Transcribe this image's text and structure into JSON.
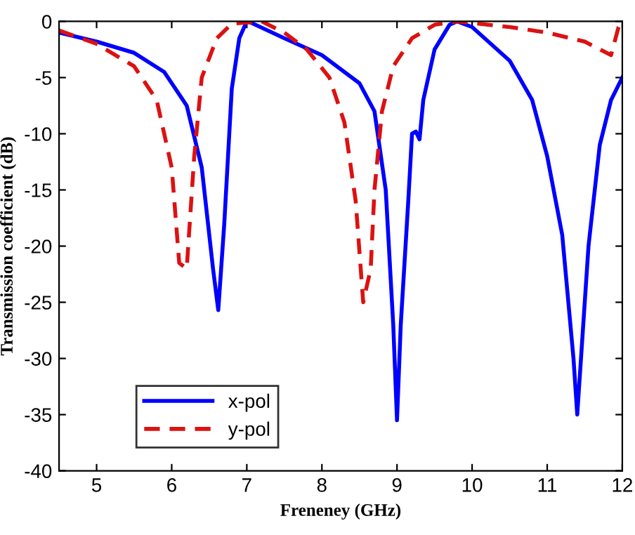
{
  "chart_data": {
    "type": "line",
    "xlabel": "Freneney (GHz)",
    "ylabel": "Transmission coefficient (dB)",
    "xlim": [
      4.5,
      12
    ],
    "ylim": [
      -40,
      0
    ],
    "xticks": [
      5,
      6,
      7,
      8,
      9,
      10,
      11,
      12
    ],
    "yticks": [
      -40,
      -35,
      -30,
      -25,
      -20,
      -15,
      -10,
      -5,
      0
    ],
    "grid": false,
    "legend": "bottom left",
    "series": [
      {
        "name": "x-pol",
        "color": "#0000ff",
        "line_style": "solid",
        "x": [
          4.5,
          5,
          5.5,
          5.9,
          6.2,
          6.4,
          6.55,
          6.62,
          6.7,
          6.8,
          6.9,
          7.0,
          7.05,
          7.5,
          8,
          8.5,
          8.7,
          8.85,
          8.95,
          9.0,
          9.05,
          9.15,
          9.2,
          9.25,
          9.3,
          9.35,
          9.5,
          9.7,
          9.8,
          10,
          10.5,
          10.8,
          11,
          11.2,
          11.35,
          11.4,
          11.45,
          11.55,
          11.7,
          11.85,
          12
        ],
        "values": [
          -1,
          -1.8,
          -2.8,
          -4.5,
          -7.5,
          -13,
          -22,
          -25.7,
          -18,
          -6,
          -1.5,
          0,
          -0.1,
          -1.5,
          -3,
          -5.5,
          -8,
          -15,
          -27,
          -35.5,
          -27,
          -16,
          -10,
          -9.8,
          -10.5,
          -7,
          -2.5,
          -0.3,
          0,
          -0.5,
          -3.5,
          -7,
          -12,
          -19,
          -30,
          -35,
          -30,
          -20,
          -11,
          -7,
          -5
        ]
      },
      {
        "name": "y-pol",
        "color": "#dd1111",
        "line_style": "dashed",
        "x": [
          4.5,
          5,
          5.5,
          5.8,
          6.0,
          6.1,
          6.2,
          6.3,
          6.4,
          6.6,
          6.8,
          7.2,
          7.5,
          7.8,
          8.1,
          8.3,
          8.45,
          8.55,
          8.65,
          8.7,
          8.8,
          8.95,
          9.2,
          9.5,
          9.8,
          10.5,
          11,
          11.5,
          11.85,
          11.95,
          12
        ],
        "values": [
          -0.8,
          -2,
          -4,
          -7,
          -13,
          -21.5,
          -22,
          -12,
          -5,
          -1.5,
          -0.2,
          0,
          -1,
          -2.5,
          -5,
          -9,
          -16,
          -25,
          -22,
          -15,
          -8,
          -4,
          -1.5,
          -0.3,
          0,
          -0.5,
          -1,
          -1.8,
          -3,
          -0.5,
          0
        ]
      }
    ]
  }
}
